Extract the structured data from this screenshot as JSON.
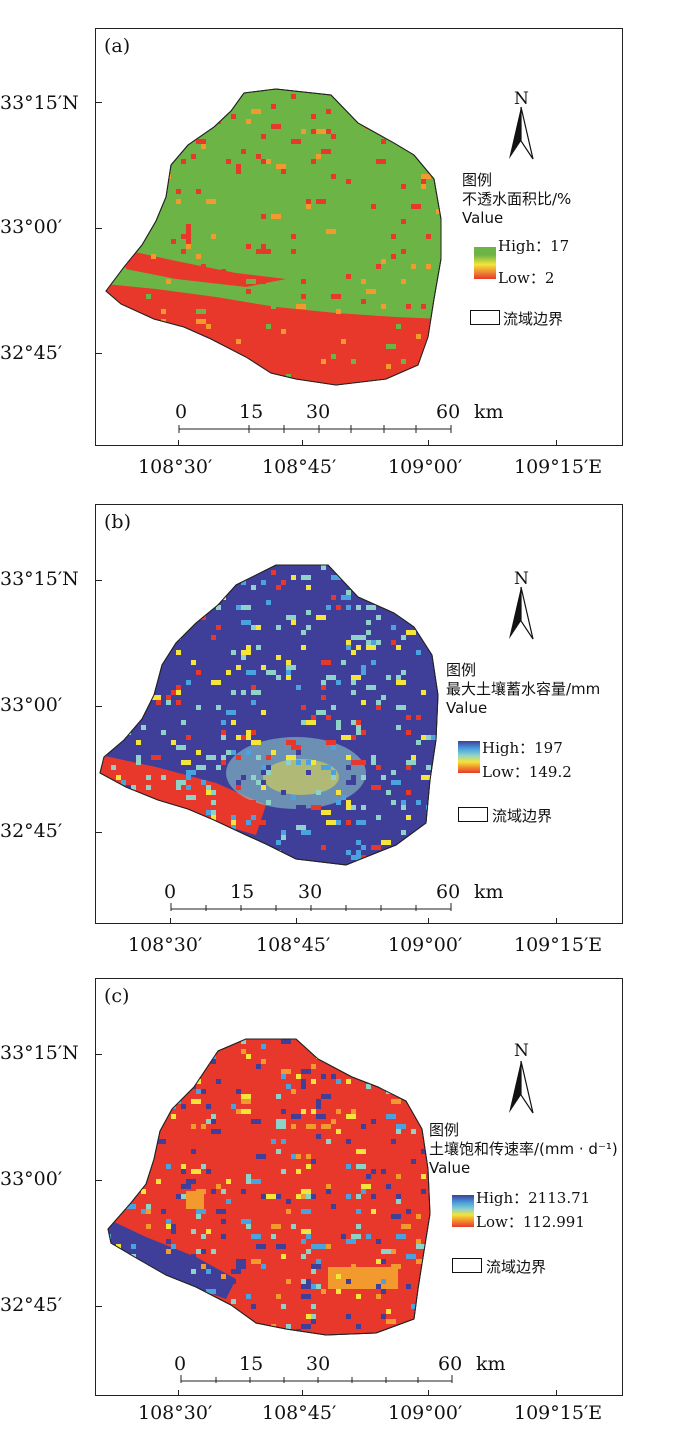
{
  "axes": {
    "lat_labels": [
      "33°15′N",
      "33°00′",
      "32°45′"
    ],
    "lon_labels": [
      "108°30′",
      "108°45′",
      "109°00′",
      "109°15′E"
    ]
  },
  "scalebar": {
    "ticks": [
      "0",
      "15",
      "30",
      "60"
    ],
    "unit": "km"
  },
  "north_label": "N",
  "legend_heading": "图例",
  "boundary_label": "流域边界",
  "panels": [
    {
      "label": "(a)",
      "legend_title": "不透水面积比/%",
      "legend_value": "Value",
      "high": "High：17",
      "low": "Low：2",
      "colors": {
        "dominant": "#6cb446",
        "minor": "#e8382c",
        "high": "#6cb446",
        "low": "#e8382c"
      }
    },
    {
      "label": "(b)",
      "legend_title": "最大土壤蓄水容量/mm",
      "legend_value": "Value",
      "high": "High：197",
      "low": "Low：149.2",
      "colors": {
        "dominant": "#3f3f99",
        "minor": "#e8382c",
        "high": "#3f3f99",
        "low": "#e8382c"
      }
    },
    {
      "label": "(c)",
      "legend_title": "土壤饱和传速率/(mm · d⁻¹)",
      "legend_value": "Value",
      "high": "High：2113.71",
      "low": "Low：112.991",
      "colors": {
        "dominant": "#e8382c",
        "minor": "#3f3f99",
        "high": "#3f3f99",
        "low": "#e8382c"
      }
    }
  ]
}
